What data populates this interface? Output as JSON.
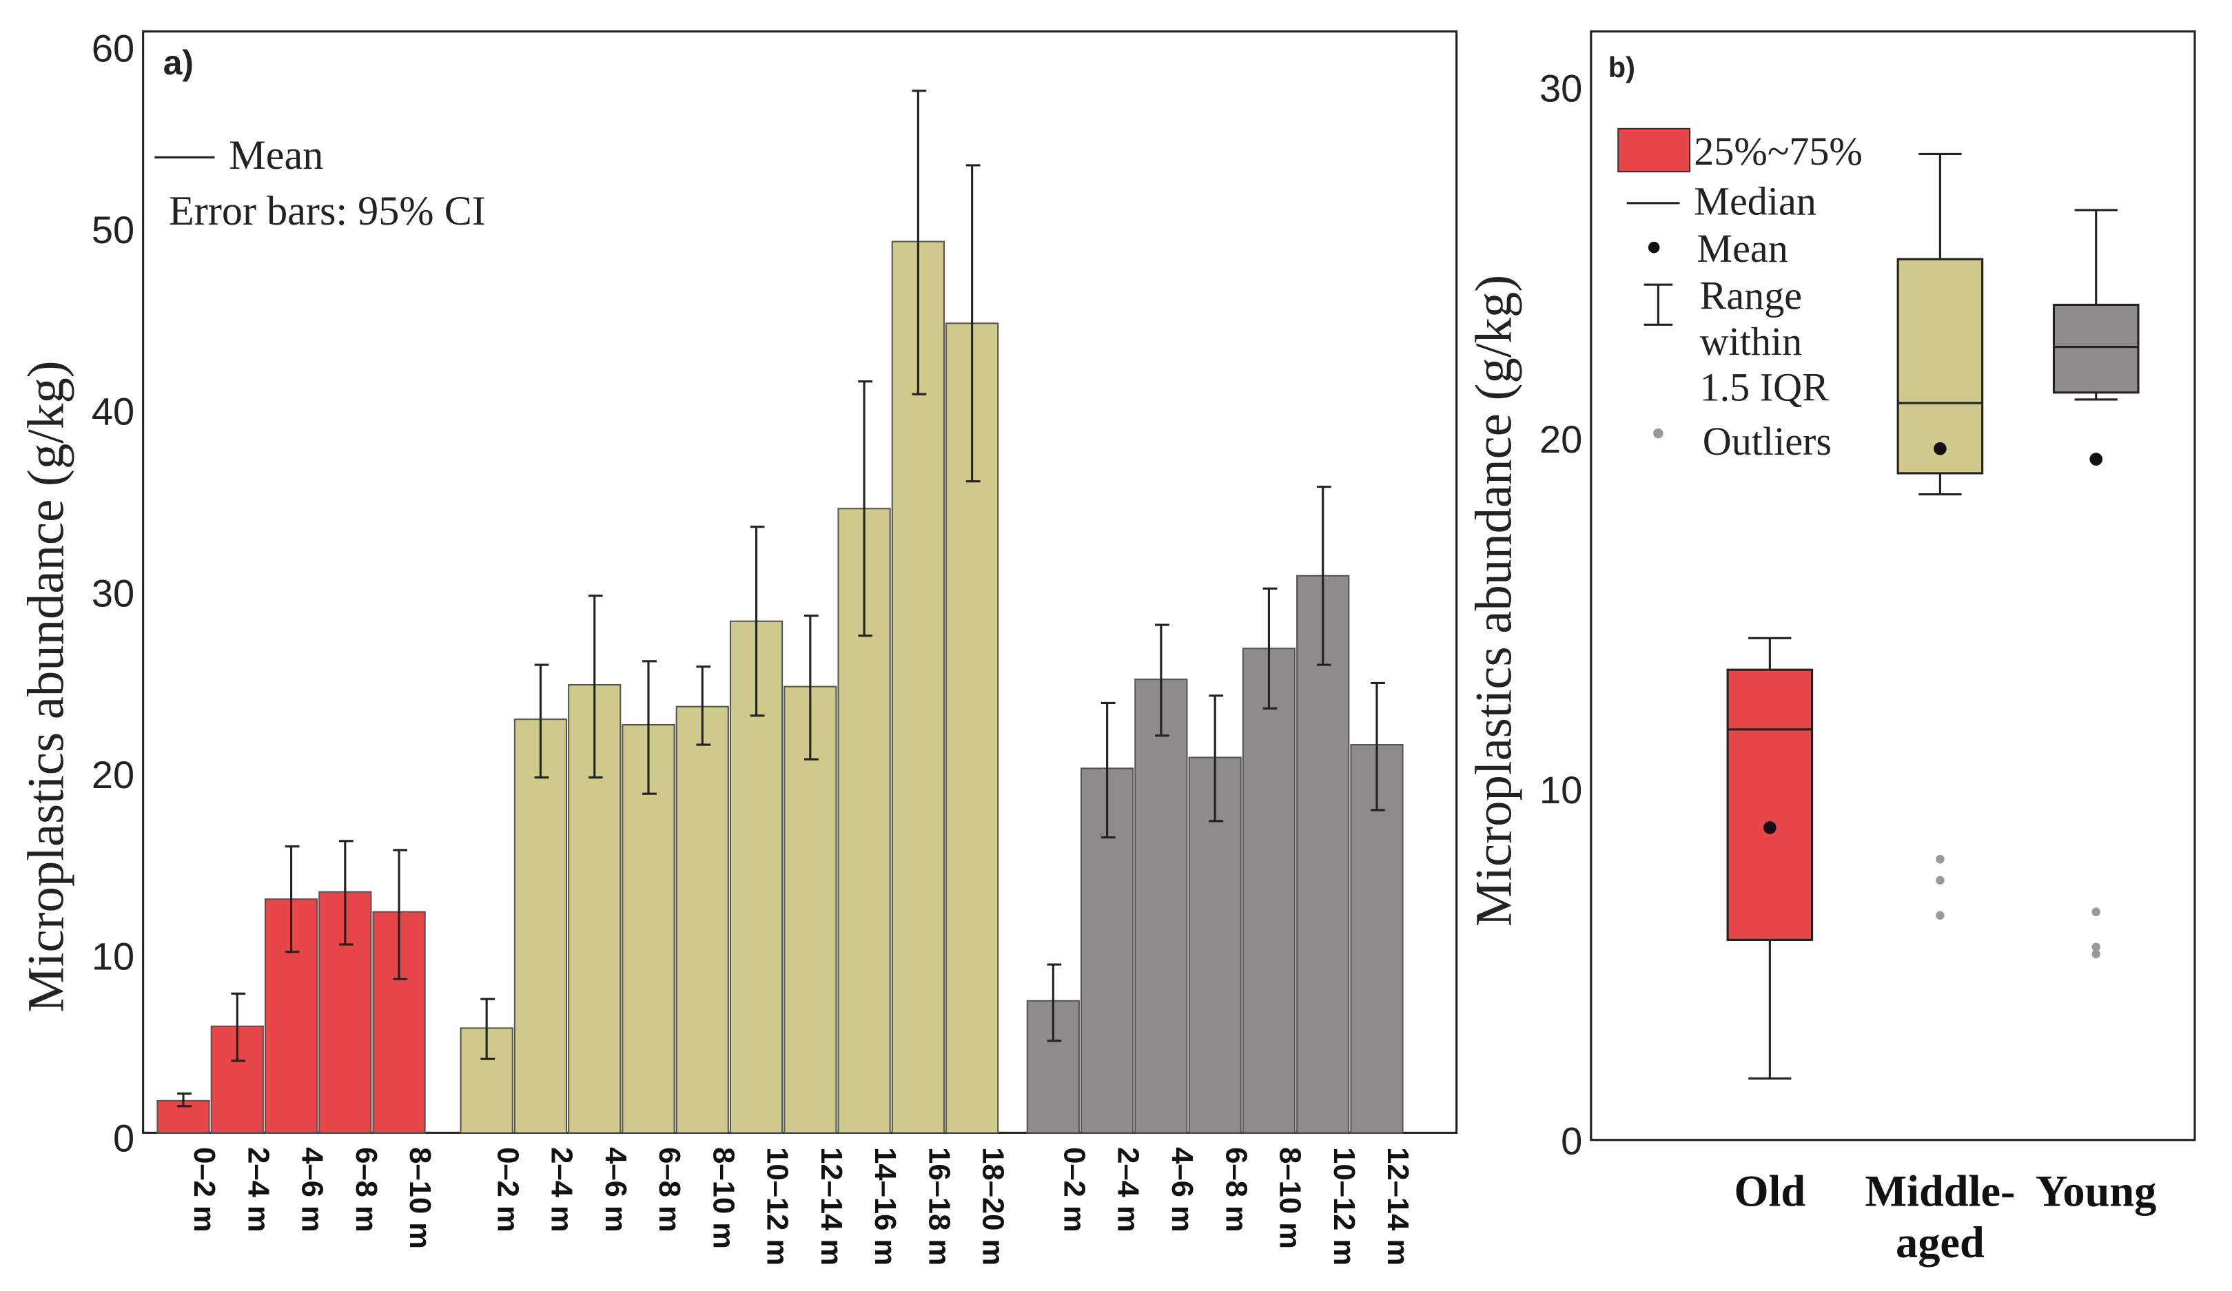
{
  "chart_data": [
    {
      "type": "bar",
      "panel_label": "a)",
      "title": "",
      "xlabel": "",
      "ylabel": "Microplastics abundance  (g/kg)",
      "ylim": [
        0,
        60
      ],
      "yticks": [
        "0",
        "10",
        "20",
        "30",
        "40",
        "50",
        "60"
      ],
      "legend": {
        "mean_label": "Mean",
        "error_label": "Error bars: 95% CI",
        "placement": "top-left"
      },
      "colors": {
        "Old": "#e8474a",
        "Middle-aged": "#cfc98c",
        "Young": "#8f8b8b"
      },
      "groups": [
        {
          "name": "Old",
          "categories": [
            "0–2 m",
            "2–4 m",
            "4–6 m",
            "6–8 m",
            "8–10 m"
          ],
          "values": [
            2.0,
            6.1,
            13.1,
            13.5,
            12.4
          ],
          "ci_high": [
            2.4,
            7.9,
            16.0,
            16.3,
            15.8
          ],
          "ci_low": [
            1.7,
            4.2,
            10.2,
            10.6,
            8.7
          ]
        },
        {
          "name": "Middle-aged",
          "categories": [
            "0–2 m",
            "2–4 m",
            "4–6 m",
            "6–8 m",
            "8–10 m",
            "10–12 m",
            "12–14 m",
            "14–16 m",
            "16–18 m",
            "18–20 m"
          ],
          "values": [
            6.0,
            23.0,
            24.9,
            22.7,
            23.7,
            28.4,
            24.8,
            34.6,
            49.3,
            44.8
          ],
          "ci_high": [
            7.6,
            26.0,
            29.8,
            26.2,
            25.9,
            33.6,
            28.7,
            41.6,
            57.6,
            53.5
          ],
          "ci_low": [
            4.3,
            19.8,
            19.8,
            18.9,
            21.6,
            23.2,
            20.8,
            27.6,
            40.9,
            36.1
          ]
        },
        {
          "name": "Young",
          "categories": [
            "0–2 m",
            "2–4 m",
            "4–6 m",
            "6–8 m",
            "8–10 m",
            "10–12 m",
            "12–14 m"
          ],
          "values": [
            7.5,
            20.3,
            25.2,
            20.9,
            26.9,
            30.9,
            21.6
          ],
          "ci_high": [
            9.5,
            23.9,
            28.2,
            24.3,
            30.2,
            35.8,
            25.0
          ],
          "ci_low": [
            5.3,
            16.5,
            22.1,
            17.4,
            23.6,
            26.0,
            18.0
          ]
        }
      ]
    },
    {
      "type": "box",
      "panel_label": "b)",
      "ylabel": "Microplastics abundance  (g/kg)",
      "ylim": [
        0,
        30
      ],
      "yticks": [
        "0",
        "10",
        "20",
        "30"
      ],
      "legend": {
        "box": "25%~75%",
        "median": "Median",
        "mean": "Mean",
        "range": [
          "Range",
          "within",
          "1.5 IQR"
        ],
        "outliers": "Outliers",
        "placement": "top-left"
      },
      "categories": [
        {
          "name": "Old",
          "label_lines": [
            "Old"
          ],
          "color": "#e8474a",
          "q1": 5.7,
          "median": 11.7,
          "q3": 13.4,
          "mean": 8.9,
          "whisker_low": 1.75,
          "whisker_high": 14.3,
          "outliers": []
        },
        {
          "name": "Middle-aged",
          "label_lines": [
            "Middle-",
            "aged"
          ],
          "color": "#cfc98c",
          "q1": 19.0,
          "median": 21.0,
          "q3": 25.1,
          "mean": 19.7,
          "whisker_low": 18.4,
          "whisker_high": 28.1,
          "outliers": [
            8.0,
            7.4,
            6.4
          ]
        },
        {
          "name": "Young",
          "label_lines": [
            "Young"
          ],
          "color": "#8f8b8b",
          "q1": 21.3,
          "median": 22.6,
          "q3": 23.8,
          "mean": 19.4,
          "whisker_low": 21.1,
          "whisker_high": 26.5,
          "outliers": [
            6.5,
            5.5,
            5.3
          ]
        }
      ]
    }
  ]
}
